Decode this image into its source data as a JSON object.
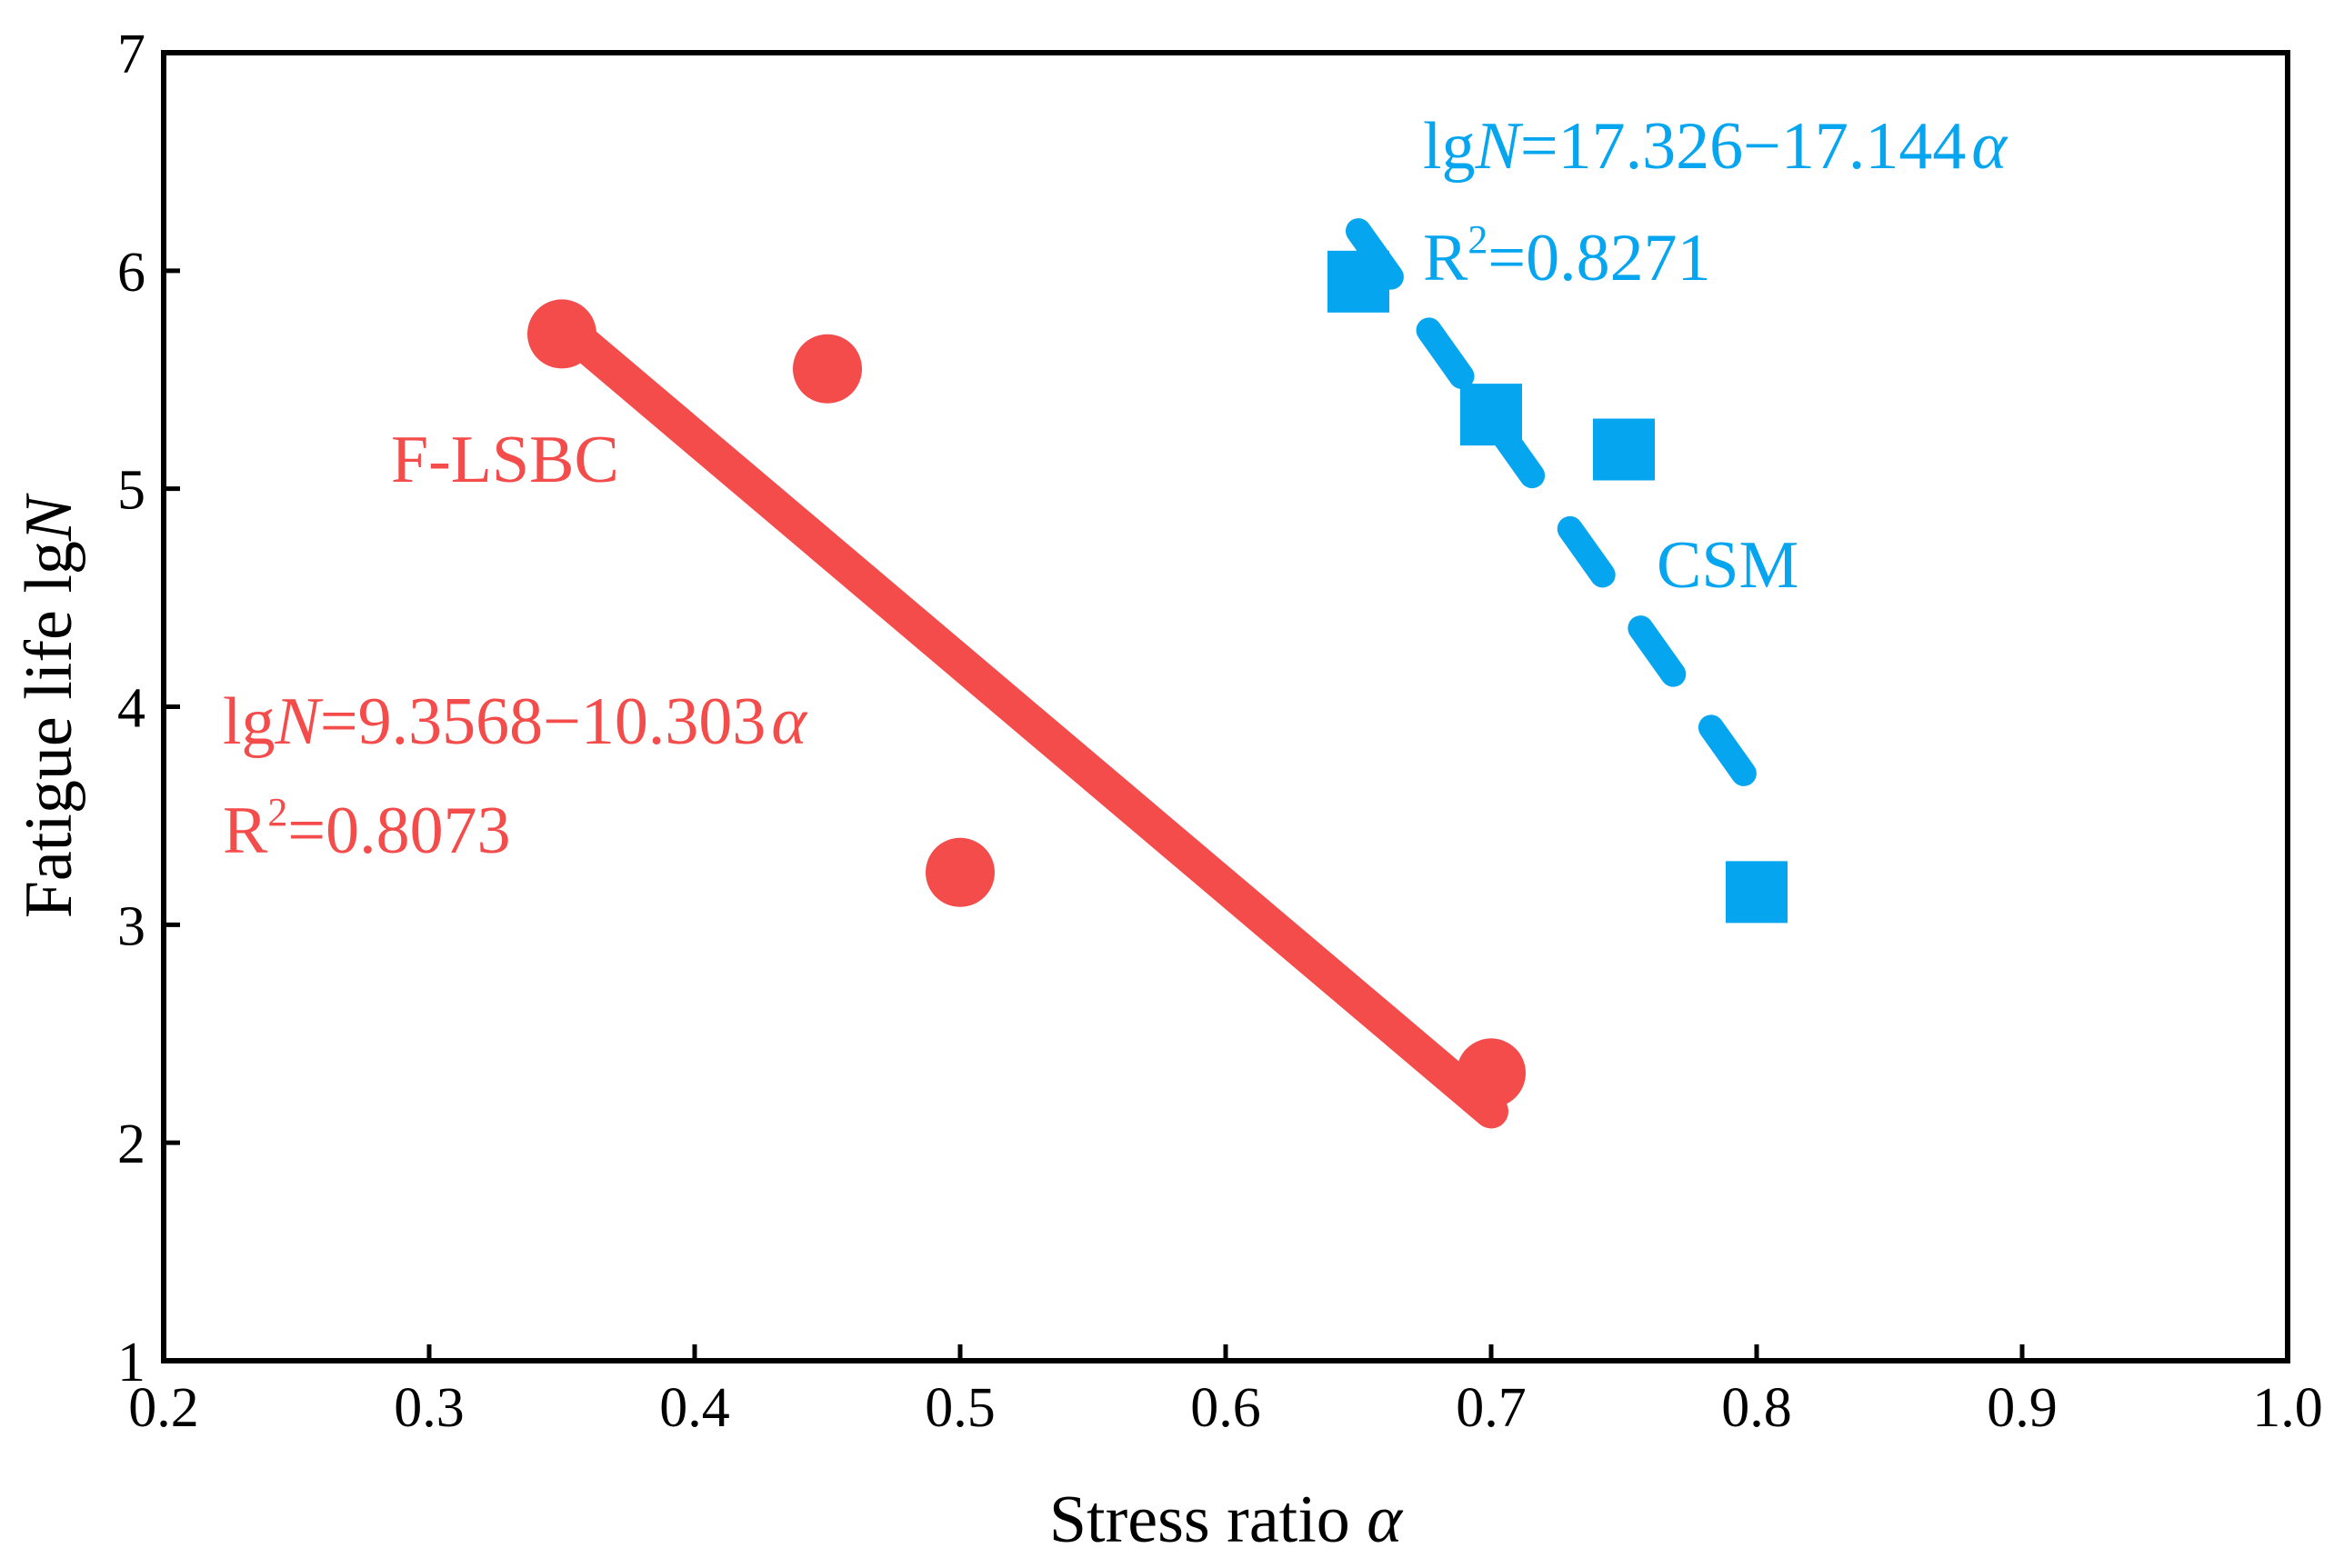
{
  "chart_data": {
    "type": "scatter",
    "xlabel": {
      "main": "Stress ratio ",
      "symbol": "α"
    },
    "ylabel": {
      "main": "Fatigue life lg",
      "symbol": "N"
    },
    "xlim": [
      0.2,
      1.0
    ],
    "ylim": [
      1,
      7
    ],
    "x_ticks": [
      "0.2",
      "0.3",
      "0.4",
      "0.5",
      "0.6",
      "0.7",
      "0.8",
      "0.9",
      "1.0"
    ],
    "y_ticks": [
      "1",
      "2",
      "3",
      "4",
      "5",
      "6",
      "7"
    ],
    "grid": false,
    "series": [
      {
        "name": "F-LSBC",
        "color": "#f44b4b",
        "marker": "circle",
        "points": [
          {
            "x": 0.35,
            "y": 5.71
          },
          {
            "x": 0.45,
            "y": 5.55
          },
          {
            "x": 0.5,
            "y": 3.24
          },
          {
            "x": 0.7,
            "y": 2.32
          }
        ],
        "fit": {
          "style": "solid",
          "x_range": [
            0.35,
            0.7
          ],
          "intercept": 9.3568,
          "slope": -10.303,
          "equation": {
            "prefix": "lg",
            "var": "N",
            "rhs": "=9.3568−10.303",
            "symbol": "α"
          },
          "r2": {
            "base": "R",
            "sup": "2",
            "value": "=0.8073"
          }
        }
      },
      {
        "name": "CSM",
        "color": "#05a5ef",
        "marker": "square",
        "points": [
          {
            "x": 0.65,
            "y": 5.95
          },
          {
            "x": 0.7,
            "y": 5.34
          },
          {
            "x": 0.75,
            "y": 5.18
          },
          {
            "x": 0.8,
            "y": 3.15
          }
        ],
        "fit": {
          "style": "dashed",
          "x_range": [
            0.65,
            0.8
          ],
          "intercept": 17.326,
          "slope": -17.144,
          "equation": {
            "prefix": "lg",
            "var": "N",
            "rhs": "=17.326−17.144",
            "symbol": "α"
          },
          "r2": {
            "base": "R",
            "sup": "2",
            "value": "=0.8271"
          }
        }
      }
    ]
  }
}
